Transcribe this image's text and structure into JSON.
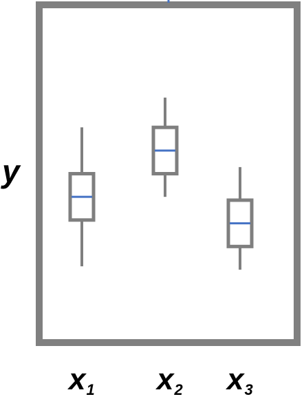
{
  "chart_data": {
    "type": "box",
    "ylabel": "y",
    "categories": [
      {
        "base": "x",
        "sub": "1"
      },
      {
        "base": "x",
        "sub": "2"
      },
      {
        "base": "x",
        "sub": "3"
      }
    ],
    "ylim": [
      0,
      100
    ],
    "boxes": [
      {
        "whisker_low": 22,
        "q1": 36,
        "median": 43,
        "q3": 50,
        "whisker_high": 64
      },
      {
        "whisker_low": 43,
        "q1": 50,
        "median": 57,
        "q3": 64,
        "whisker_high": 73
      },
      {
        "whisker_low": 21,
        "q1": 28,
        "median": 35,
        "q3": 42,
        "whisker_high": 52
      }
    ],
    "grid": false,
    "legend": "none"
  },
  "colors": {
    "frame": "#808080",
    "box": "#7f7f7f",
    "median": "#4472c4",
    "text": "#000000"
  }
}
